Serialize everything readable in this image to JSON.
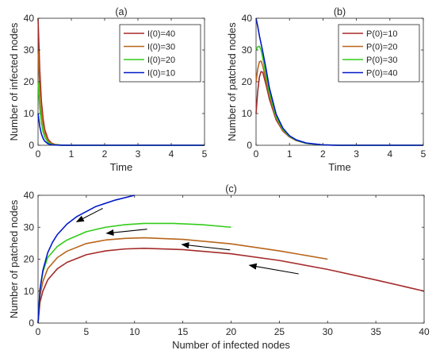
{
  "chart_data": [
    {
      "panel": "(a)",
      "type": "line",
      "title": "(a)",
      "xlabel": "Time",
      "ylabel": "Number of infected nodes",
      "xlim": [
        0,
        5
      ],
      "ylim": [
        0,
        40
      ],
      "xticks": [
        0,
        1,
        2,
        3,
        4,
        5
      ],
      "yticks": [
        0,
        10,
        20,
        30,
        40
      ],
      "legend_position": "top-right",
      "series": [
        {
          "name": "I(0)=40",
          "color": "#a52a2a",
          "x": [
            0,
            0.05,
            0.1,
            0.15,
            0.2,
            0.3,
            0.4,
            0.5,
            0.7,
            1,
            2,
            5
          ],
          "values": [
            40,
            24,
            14,
            8.5,
            5,
            1.9,
            0.7,
            0.3,
            0.05,
            0,
            0,
            0
          ]
        },
        {
          "name": "I(0)=30",
          "color": "#b8651b",
          "x": [
            0,
            0.05,
            0.1,
            0.15,
            0.2,
            0.3,
            0.4,
            0.5,
            0.7,
            1,
            2,
            5
          ],
          "values": [
            30,
            18,
            10.8,
            6.5,
            3.9,
            1.4,
            0.5,
            0.2,
            0.03,
            0,
            0,
            0
          ]
        },
        {
          "name": "I(0)=20",
          "color": "#33cc1a",
          "x": [
            0,
            0.05,
            0.1,
            0.15,
            0.2,
            0.3,
            0.4,
            0.5,
            0.7,
            1,
            2,
            5
          ],
          "values": [
            20,
            12,
            7.2,
            4.3,
            2.6,
            0.9,
            0.35,
            0.13,
            0.02,
            0,
            0,
            0
          ]
        },
        {
          "name": "I(0)=10",
          "color": "#0019c8",
          "x": [
            0,
            0.05,
            0.1,
            0.15,
            0.2,
            0.3,
            0.4,
            0.5,
            0.7,
            1,
            2,
            5
          ],
          "values": [
            10,
            6,
            3.6,
            2.2,
            1.3,
            0.45,
            0.17,
            0.06,
            0.01,
            0,
            0,
            0
          ]
        }
      ]
    },
    {
      "panel": "(b)",
      "type": "line",
      "title": "(b)",
      "xlabel": "Time",
      "ylabel": "Number of patched nodes",
      "xlim": [
        0,
        5
      ],
      "ylim": [
        0,
        40
      ],
      "xticks": [
        0,
        1,
        2,
        3,
        4,
        5
      ],
      "yticks": [
        0,
        10,
        20,
        30,
        40
      ],
      "legend_position": "top-right",
      "series": [
        {
          "name": "P(0)=10",
          "color": "#a52a2a",
          "x": [
            0,
            0.05,
            0.1,
            0.15,
            0.2,
            0.3,
            0.4,
            0.6,
            0.8,
            1,
            1.2,
            1.5,
            2,
            2.5,
            3,
            5
          ],
          "values": [
            10,
            17,
            21.5,
            23.2,
            23,
            19,
            14.5,
            8,
            4.5,
            2.6,
            1.5,
            0.6,
            0.1,
            0,
            0,
            0
          ]
        },
        {
          "name": "P(0)=20",
          "color": "#b8651b",
          "x": [
            0,
            0.05,
            0.1,
            0.15,
            0.2,
            0.3,
            0.4,
            0.6,
            0.8,
            1,
            1.2,
            1.5,
            2,
            2.5,
            3,
            5
          ],
          "values": [
            20,
            24,
            26.3,
            26.5,
            25,
            20.5,
            15.5,
            8.5,
            4.7,
            2.7,
            1.5,
            0.6,
            0.1,
            0,
            0,
            0
          ]
        },
        {
          "name": "P(0)=30",
          "color": "#33cc1a",
          "x": [
            0,
            0.05,
            0.1,
            0.15,
            0.2,
            0.3,
            0.4,
            0.6,
            0.8,
            1,
            1.2,
            1.5,
            2,
            2.5,
            3,
            5
          ],
          "values": [
            30,
            31,
            31.2,
            30,
            27.5,
            22,
            16.5,
            9,
            5,
            2.8,
            1.6,
            0.6,
            0.1,
            0,
            0,
            0
          ]
        },
        {
          "name": "P(0)=40",
          "color": "#0019c8",
          "x": [
            0,
            0.05,
            0.1,
            0.15,
            0.2,
            0.3,
            0.4,
            0.6,
            0.8,
            1,
            1.2,
            1.5,
            2,
            2.5,
            3,
            5
          ],
          "values": [
            40,
            37.5,
            34.5,
            32,
            29.5,
            24,
            18,
            9.8,
            5.4,
            3,
            1.7,
            0.7,
            0.1,
            0,
            0,
            0
          ]
        }
      ]
    },
    {
      "panel": "(c)",
      "type": "line",
      "title": "(c)",
      "xlabel": "Number of infected nodes",
      "ylabel": "Number of patched nodes",
      "xlim": [
        0,
        40
      ],
      "ylim": [
        0,
        40
      ],
      "xticks": [
        0,
        5,
        10,
        15,
        20,
        25,
        30,
        35,
        40
      ],
      "yticks": [
        0,
        10,
        20,
        30,
        40
      ],
      "series": [
        {
          "color": "#a52a2a",
          "x": [
            40,
            35,
            30,
            25,
            20,
            15,
            11,
            9,
            7,
            5,
            3,
            2,
            1,
            0.5,
            0.2,
            0
          ],
          "values": [
            10,
            13.5,
            16.8,
            19.6,
            21.7,
            23,
            23.4,
            23.2,
            22.6,
            21.4,
            19,
            17,
            13.5,
            10,
            6.5,
            0
          ]
        },
        {
          "color": "#b8651b",
          "x": [
            30,
            25,
            20,
            15,
            11,
            9,
            7,
            5,
            3,
            2,
            1,
            0.5,
            0.2,
            0
          ],
          "values": [
            20,
            22.6,
            24.8,
            26.2,
            26.7,
            26.5,
            26,
            24.9,
            22.5,
            20.5,
            17,
            13,
            8.5,
            0
          ]
        },
        {
          "color": "#33cc1a",
          "x": [
            20,
            17,
            14,
            11,
            9,
            7,
            5,
            3,
            2,
            1,
            0.5,
            0.2,
            0
          ],
          "values": [
            30,
            30.8,
            31.2,
            31.2,
            30.8,
            30,
            28.6,
            26,
            24,
            20.5,
            16,
            10.5,
            0
          ]
        },
        {
          "color": "#0019c8",
          "x": [
            10,
            8,
            6,
            4,
            3,
            2,
            1.5,
            1,
            0.5,
            0.2,
            0
          ],
          "values": [
            40,
            38.5,
            36.5,
            33.3,
            31,
            27.7,
            25.3,
            22,
            16.5,
            10.5,
            0
          ]
        }
      ],
      "arrows": [
        {
          "x1": 6.7,
          "y1": 35.9,
          "x2": 4.0,
          "y2": 31.7
        },
        {
          "x1": 11.3,
          "y1": 29.4,
          "x2": 7.1,
          "y2": 28.1
        },
        {
          "x1": 19.9,
          "y1": 22.9,
          "x2": 14.9,
          "y2": 24.6
        },
        {
          "x1": 27.0,
          "y1": 15.4,
          "x2": 21.9,
          "y2": 18.1
        }
      ]
    }
  ]
}
